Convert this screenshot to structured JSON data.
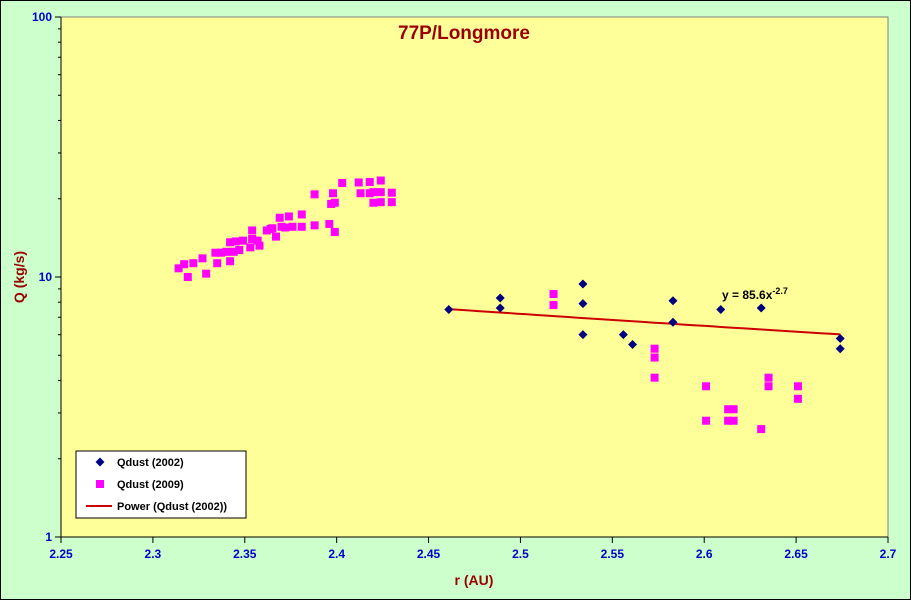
{
  "chart_data": {
    "type": "scatter",
    "title": "77P/Longmore",
    "xlabel": "r (AU)",
    "ylabel": "Q (kg/s)",
    "xlim": [
      2.25,
      2.7
    ],
    "ylim": [
      1,
      100
    ],
    "yscale": "log",
    "x_ticks": [
      "2.25",
      "2.3",
      "2.35",
      "2.4",
      "2.45",
      "2.5",
      "2.55",
      "2.6",
      "2.65",
      "2.7"
    ],
    "y_ticks": [
      "1",
      "10",
      "100"
    ],
    "grid": false,
    "legend_position": "bottom-left",
    "colors": {
      "plot_background": "#ffff99",
      "chart_background": "#ccffcc",
      "series_2002": "#000080",
      "series_2009": "#ff00ff",
      "trendline": "#cc0000"
    },
    "series": [
      {
        "name": "Qdust (2002)",
        "marker": "diamond",
        "points": [
          [
            2.461,
            7.5
          ],
          [
            2.489,
            8.3
          ],
          [
            2.489,
            7.6
          ],
          [
            2.534,
            9.4
          ],
          [
            2.534,
            7.9
          ],
          [
            2.534,
            6.0
          ],
          [
            2.556,
            6.0
          ],
          [
            2.561,
            5.5
          ],
          [
            2.583,
            8.1
          ],
          [
            2.583,
            6.7
          ],
          [
            2.609,
            7.5
          ],
          [
            2.631,
            7.6
          ],
          [
            2.674,
            5.8
          ],
          [
            2.674,
            5.3
          ]
        ]
      },
      {
        "name": "Qdust (2009)",
        "marker": "square",
        "points": [
          [
            2.314,
            10.8
          ],
          [
            2.317,
            11.2
          ],
          [
            2.319,
            10.0
          ],
          [
            2.322,
            11.3
          ],
          [
            2.327,
            11.8
          ],
          [
            2.329,
            10.3
          ],
          [
            2.334,
            12.4
          ],
          [
            2.335,
            11.3
          ],
          [
            2.337,
            12.4
          ],
          [
            2.34,
            12.5
          ],
          [
            2.342,
            13.6
          ],
          [
            2.342,
            11.5
          ],
          [
            2.344,
            12.5
          ],
          [
            2.345,
            13.7
          ],
          [
            2.347,
            12.7
          ],
          [
            2.349,
            13.8
          ],
          [
            2.353,
            13.0
          ],
          [
            2.354,
            14.0
          ],
          [
            2.354,
            15.1
          ],
          [
            2.357,
            13.8
          ],
          [
            2.358,
            13.2
          ],
          [
            2.362,
            15.1
          ],
          [
            2.364,
            15.3
          ],
          [
            2.365,
            15.4
          ],
          [
            2.367,
            14.3
          ],
          [
            2.369,
            16.9
          ],
          [
            2.37,
            15.6
          ],
          [
            2.372,
            15.5
          ],
          [
            2.374,
            17.1
          ],
          [
            2.376,
            15.6
          ],
          [
            2.381,
            17.4
          ],
          [
            2.381,
            15.6
          ],
          [
            2.388,
            15.8
          ],
          [
            2.388,
            20.8
          ],
          [
            2.396,
            16.0
          ],
          [
            2.397,
            19.1
          ],
          [
            2.398,
            21.0
          ],
          [
            2.399,
            19.3
          ],
          [
            2.399,
            14.9
          ],
          [
            2.403,
            23.0
          ],
          [
            2.412,
            23.1
          ],
          [
            2.413,
            21.0
          ],
          [
            2.418,
            23.2
          ],
          [
            2.418,
            21.0
          ],
          [
            2.42,
            21.2
          ],
          [
            2.42,
            19.3
          ],
          [
            2.424,
            23.5
          ],
          [
            2.424,
            21.2
          ],
          [
            2.424,
            19.4
          ],
          [
            2.43,
            21.1
          ],
          [
            2.43,
            19.4
          ],
          [
            2.518,
            8.6
          ],
          [
            2.518,
            7.8
          ],
          [
            2.573,
            5.3
          ],
          [
            2.573,
            4.9
          ],
          [
            2.573,
            4.1
          ],
          [
            2.601,
            3.8
          ],
          [
            2.601,
            2.8
          ],
          [
            2.613,
            3.1
          ],
          [
            2.613,
            2.8
          ],
          [
            2.616,
            3.1
          ],
          [
            2.616,
            2.8
          ],
          [
            2.631,
            2.6
          ],
          [
            2.635,
            4.1
          ],
          [
            2.635,
            3.8
          ],
          [
            2.651,
            3.8
          ],
          [
            2.651,
            3.4
          ]
        ]
      },
      {
        "name": "Power (Qdust (2002))",
        "type": "line",
        "equation_label": "y = 85.6x",
        "equation_exponent": "-2.7",
        "coefficient": 85.6,
        "exponent": -2.7,
        "x_range": [
          2.461,
          2.674
        ]
      }
    ]
  }
}
